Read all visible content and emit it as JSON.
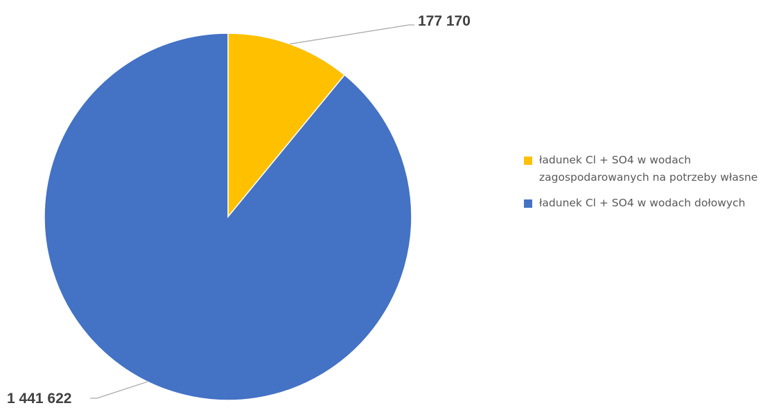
{
  "chart_data": {
    "type": "pie",
    "title": "",
    "series": [
      {
        "name": "ładunek Cl + SO4 w wodach zagospodarowanych na potrzeby własne",
        "value": 177170,
        "label": "177 170",
        "color": "#FFC000"
      },
      {
        "name": "ładunek Cl + SO4 w wodach dołowych",
        "value": 1441622,
        "label": "1 441 622",
        "color": "#4472C4"
      }
    ],
    "legend_position": "right"
  },
  "colors": {
    "leader_line": "#A6A6A6",
    "slice_border": "#FFFFFF"
  }
}
